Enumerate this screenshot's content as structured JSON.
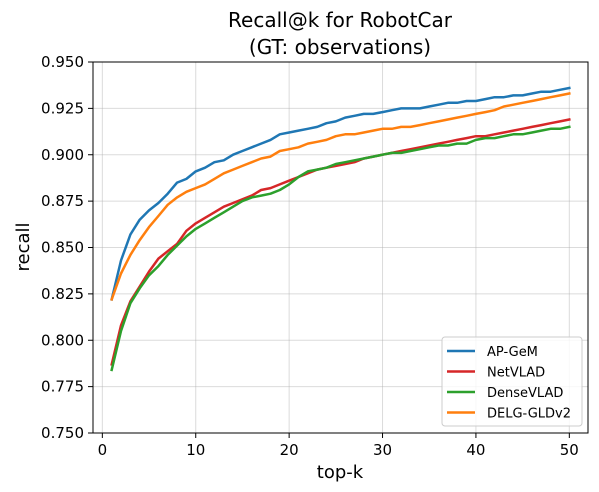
{
  "chart_data": {
    "type": "line",
    "title": [
      "Recall@k for RobotCar",
      "(GT: observations)"
    ],
    "xlabel": "top-k",
    "ylabel": "recall",
    "xlim": [
      -1,
      52
    ],
    "ylim": [
      0.75,
      0.95
    ],
    "xticks": [
      0,
      10,
      20,
      30,
      40,
      50
    ],
    "yticks": [
      0.75,
      0.775,
      0.8,
      0.825,
      0.85,
      0.875,
      0.9,
      0.925,
      0.95
    ],
    "ytick_labels": [
      "0.750",
      "0.775",
      "0.800",
      "0.825",
      "0.850",
      "0.875",
      "0.900",
      "0.925",
      "0.950"
    ],
    "grid": true,
    "legend_position": "lower-right",
    "x": [
      1,
      2,
      3,
      4,
      5,
      6,
      7,
      8,
      9,
      10,
      11,
      12,
      13,
      14,
      15,
      16,
      17,
      18,
      19,
      20,
      21,
      22,
      23,
      24,
      25,
      26,
      27,
      28,
      29,
      30,
      31,
      32,
      33,
      34,
      35,
      36,
      37,
      38,
      39,
      40,
      41,
      42,
      43,
      44,
      45,
      46,
      47,
      48,
      49,
      50
    ],
    "series": [
      {
        "name": "AP-GeM",
        "color": "#1f77b4",
        "values": [
          0.822,
          0.843,
          0.857,
          0.865,
          0.87,
          0.874,
          0.879,
          0.885,
          0.887,
          0.891,
          0.893,
          0.896,
          0.897,
          0.9,
          0.902,
          0.904,
          0.906,
          0.908,
          0.911,
          0.912,
          0.913,
          0.914,
          0.915,
          0.917,
          0.918,
          0.92,
          0.921,
          0.922,
          0.922,
          0.923,
          0.924,
          0.925,
          0.925,
          0.925,
          0.926,
          0.927,
          0.928,
          0.928,
          0.929,
          0.929,
          0.93,
          0.931,
          0.931,
          0.932,
          0.932,
          0.933,
          0.934,
          0.934,
          0.935,
          0.936
        ]
      },
      {
        "name": "NetVLAD",
        "color": "#d62728",
        "values": [
          0.787,
          0.808,
          0.821,
          0.829,
          0.837,
          0.844,
          0.848,
          0.852,
          0.859,
          0.863,
          0.866,
          0.869,
          0.872,
          0.874,
          0.876,
          0.878,
          0.881,
          0.882,
          0.884,
          0.886,
          0.888,
          0.89,
          0.892,
          0.893,
          0.894,
          0.895,
          0.896,
          0.898,
          0.899,
          0.9,
          0.901,
          0.902,
          0.903,
          0.904,
          0.905,
          0.906,
          0.907,
          0.908,
          0.909,
          0.91,
          0.91,
          0.911,
          0.912,
          0.913,
          0.914,
          0.915,
          0.916,
          0.917,
          0.918,
          0.919
        ]
      },
      {
        "name": "DenseVLAD",
        "color": "#2ca02c",
        "values": [
          0.784,
          0.805,
          0.82,
          0.828,
          0.835,
          0.84,
          0.846,
          0.851,
          0.856,
          0.86,
          0.863,
          0.866,
          0.869,
          0.872,
          0.875,
          0.877,
          0.878,
          0.879,
          0.881,
          0.884,
          0.888,
          0.891,
          0.892,
          0.893,
          0.895,
          0.896,
          0.897,
          0.898,
          0.899,
          0.9,
          0.901,
          0.901,
          0.902,
          0.903,
          0.904,
          0.905,
          0.905,
          0.906,
          0.906,
          0.908,
          0.909,
          0.909,
          0.91,
          0.911,
          0.911,
          0.912,
          0.913,
          0.914,
          0.914,
          0.915
        ]
      },
      {
        "name": "DELG-GLDv2",
        "color": "#ff7f0e",
        "values": [
          0.822,
          0.836,
          0.846,
          0.854,
          0.861,
          0.867,
          0.873,
          0.877,
          0.88,
          0.882,
          0.884,
          0.887,
          0.89,
          0.892,
          0.894,
          0.896,
          0.898,
          0.899,
          0.902,
          0.903,
          0.904,
          0.906,
          0.907,
          0.908,
          0.91,
          0.911,
          0.911,
          0.912,
          0.913,
          0.914,
          0.914,
          0.915,
          0.915,
          0.916,
          0.917,
          0.918,
          0.919,
          0.92,
          0.921,
          0.922,
          0.923,
          0.924,
          0.926,
          0.927,
          0.928,
          0.929,
          0.93,
          0.931,
          0.932,
          0.933
        ]
      }
    ]
  }
}
